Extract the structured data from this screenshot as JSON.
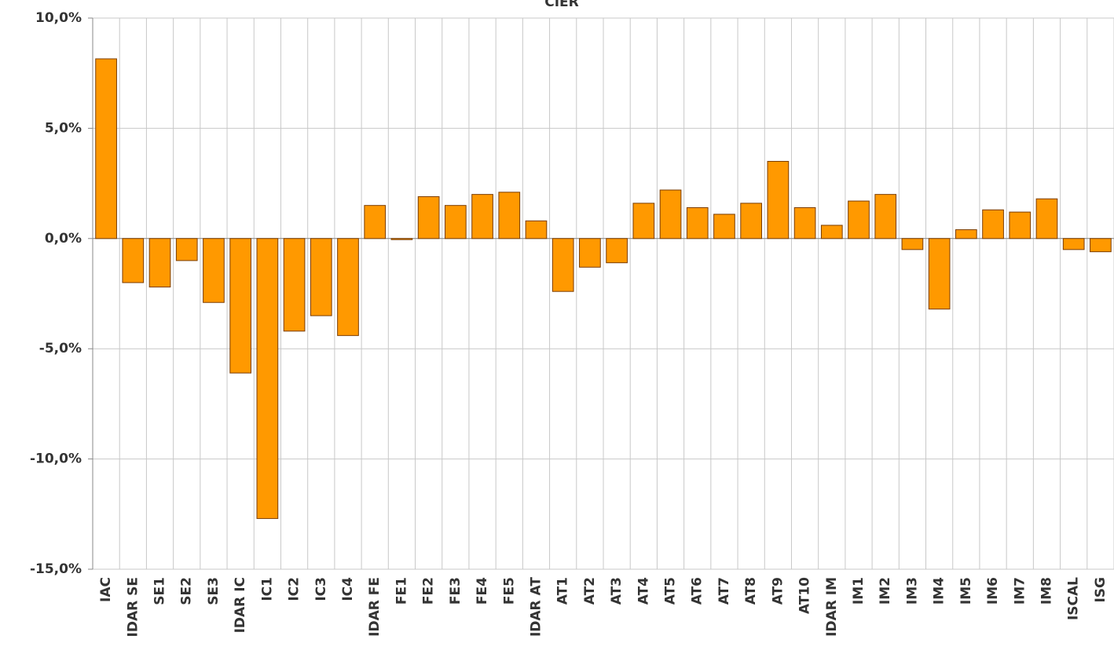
{
  "chart_data": {
    "type": "bar",
    "title": "CIER",
    "categories": [
      "IAC",
      "IDAR SE",
      "SE1",
      "SE2",
      "SE3",
      "IDAR IC",
      "IC1",
      "IC2",
      "IC3",
      "IC4",
      "IDAR FE",
      "FE1",
      "FE2",
      "FE3",
      "FE4",
      "FE5",
      "IDAR AT",
      "AT1",
      "AT2",
      "AT3",
      "AT4",
      "AT5",
      "AT6",
      "AT7",
      "AT8",
      "AT9",
      "AT10",
      "IDAR IM",
      "IM1",
      "IM2",
      "IM3",
      "IM4",
      "IM5",
      "IM6",
      "IM7",
      "IM8",
      "ISCAL",
      "ISG"
    ],
    "values": [
      8.15,
      -2.0,
      -2.2,
      -1.0,
      -2.9,
      -6.1,
      -12.7,
      -4.2,
      -3.5,
      -4.4,
      1.5,
      -0.05,
      1.9,
      1.5,
      2.0,
      2.1,
      0.8,
      -2.4,
      -1.3,
      -1.1,
      1.6,
      2.2,
      1.4,
      1.1,
      1.6,
      3.5,
      1.4,
      0.6,
      1.7,
      2.0,
      -0.5,
      -3.2,
      0.4,
      1.3,
      1.2,
      1.8,
      -0.5,
      -0.6
    ],
    "color": "#ff9900",
    "edge_color": "#7a3c00",
    "ylim": [
      -15,
      10
    ],
    "yticks": [
      {
        "value": -15,
        "label": "-15,0%"
      },
      {
        "value": -10,
        "label": "-10,0%"
      },
      {
        "value": -5,
        "label": "-5,0%"
      },
      {
        "value": 0,
        "label": "0,0%"
      },
      {
        "value": 5,
        "label": "5,0%"
      },
      {
        "value": 10,
        "label": "10,0%"
      }
    ],
    "grid": true
  }
}
